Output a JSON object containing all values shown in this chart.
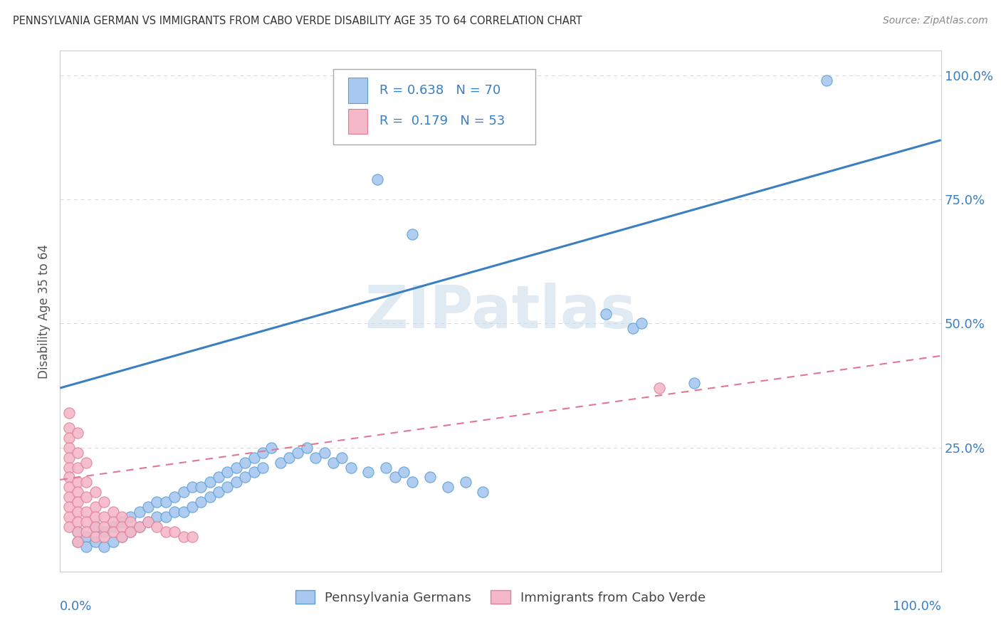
{
  "title": "PENNSYLVANIA GERMAN VS IMMIGRANTS FROM CABO VERDE DISABILITY AGE 35 TO 64 CORRELATION CHART",
  "source": "Source: ZipAtlas.com",
  "ylabel": "Disability Age 35 to 64",
  "r_blue": 0.638,
  "n_blue": 70,
  "r_pink": 0.179,
  "n_pink": 53,
  "blue_scatter": [
    [
      0.02,
      0.08
    ],
    [
      0.02,
      0.06
    ],
    [
      0.03,
      0.07
    ],
    [
      0.03,
      0.05
    ],
    [
      0.04,
      0.09
    ],
    [
      0.04,
      0.06
    ],
    [
      0.05,
      0.08
    ],
    [
      0.05,
      0.05
    ],
    [
      0.06,
      0.09
    ],
    [
      0.06,
      0.06
    ],
    [
      0.07,
      0.1
    ],
    [
      0.07,
      0.07
    ],
    [
      0.08,
      0.11
    ],
    [
      0.08,
      0.08
    ],
    [
      0.09,
      0.12
    ],
    [
      0.09,
      0.09
    ],
    [
      0.1,
      0.13
    ],
    [
      0.1,
      0.1
    ],
    [
      0.11,
      0.14
    ],
    [
      0.11,
      0.11
    ],
    [
      0.12,
      0.14
    ],
    [
      0.12,
      0.11
    ],
    [
      0.13,
      0.15
    ],
    [
      0.13,
      0.12
    ],
    [
      0.14,
      0.16
    ],
    [
      0.14,
      0.12
    ],
    [
      0.15,
      0.17
    ],
    [
      0.15,
      0.13
    ],
    [
      0.16,
      0.17
    ],
    [
      0.16,
      0.14
    ],
    [
      0.17,
      0.18
    ],
    [
      0.17,
      0.15
    ],
    [
      0.18,
      0.19
    ],
    [
      0.18,
      0.16
    ],
    [
      0.19,
      0.2
    ],
    [
      0.19,
      0.17
    ],
    [
      0.2,
      0.21
    ],
    [
      0.2,
      0.18
    ],
    [
      0.21,
      0.22
    ],
    [
      0.21,
      0.19
    ],
    [
      0.22,
      0.23
    ],
    [
      0.22,
      0.2
    ],
    [
      0.23,
      0.24
    ],
    [
      0.23,
      0.21
    ],
    [
      0.24,
      0.25
    ],
    [
      0.25,
      0.22
    ],
    [
      0.26,
      0.23
    ],
    [
      0.27,
      0.24
    ],
    [
      0.28,
      0.25
    ],
    [
      0.29,
      0.23
    ],
    [
      0.3,
      0.24
    ],
    [
      0.31,
      0.22
    ],
    [
      0.32,
      0.23
    ],
    [
      0.33,
      0.21
    ],
    [
      0.35,
      0.2
    ],
    [
      0.37,
      0.21
    ],
    [
      0.38,
      0.19
    ],
    [
      0.39,
      0.2
    ],
    [
      0.4,
      0.18
    ],
    [
      0.42,
      0.19
    ],
    [
      0.44,
      0.17
    ],
    [
      0.46,
      0.18
    ],
    [
      0.48,
      0.16
    ],
    [
      0.36,
      0.79
    ],
    [
      0.4,
      0.68
    ],
    [
      0.62,
      0.52
    ],
    [
      0.65,
      0.49
    ],
    [
      0.66,
      0.5
    ],
    [
      0.72,
      0.38
    ],
    [
      0.87,
      0.99
    ]
  ],
  "pink_scatter": [
    [
      0.01,
      0.32
    ],
    [
      0.01,
      0.29
    ],
    [
      0.01,
      0.27
    ],
    [
      0.01,
      0.25
    ],
    [
      0.01,
      0.23
    ],
    [
      0.01,
      0.21
    ],
    [
      0.01,
      0.19
    ],
    [
      0.01,
      0.17
    ],
    [
      0.01,
      0.15
    ],
    [
      0.01,
      0.13
    ],
    [
      0.01,
      0.11
    ],
    [
      0.01,
      0.09
    ],
    [
      0.02,
      0.28
    ],
    [
      0.02,
      0.24
    ],
    [
      0.02,
      0.21
    ],
    [
      0.02,
      0.18
    ],
    [
      0.02,
      0.16
    ],
    [
      0.02,
      0.14
    ],
    [
      0.02,
      0.12
    ],
    [
      0.02,
      0.1
    ],
    [
      0.02,
      0.08
    ],
    [
      0.02,
      0.06
    ],
    [
      0.03,
      0.22
    ],
    [
      0.03,
      0.18
    ],
    [
      0.03,
      0.15
    ],
    [
      0.03,
      0.12
    ],
    [
      0.03,
      0.1
    ],
    [
      0.03,
      0.08
    ],
    [
      0.04,
      0.16
    ],
    [
      0.04,
      0.13
    ],
    [
      0.04,
      0.11
    ],
    [
      0.04,
      0.09
    ],
    [
      0.04,
      0.07
    ],
    [
      0.05,
      0.14
    ],
    [
      0.05,
      0.11
    ],
    [
      0.05,
      0.09
    ],
    [
      0.05,
      0.07
    ],
    [
      0.06,
      0.12
    ],
    [
      0.06,
      0.1
    ],
    [
      0.06,
      0.08
    ],
    [
      0.07,
      0.11
    ],
    [
      0.07,
      0.09
    ],
    [
      0.07,
      0.07
    ],
    [
      0.08,
      0.1
    ],
    [
      0.08,
      0.08
    ],
    [
      0.09,
      0.09
    ],
    [
      0.1,
      0.1
    ],
    [
      0.11,
      0.09
    ],
    [
      0.12,
      0.08
    ],
    [
      0.13,
      0.08
    ],
    [
      0.14,
      0.07
    ],
    [
      0.15,
      0.07
    ],
    [
      0.68,
      0.37
    ]
  ],
  "blue_line": [
    0.0,
    0.37,
    1.0,
    0.87
  ],
  "pink_line": [
    0.0,
    0.185,
    1.0,
    0.435
  ],
  "blue_color": "#a8c8f0",
  "blue_edge_color": "#5a9fd4",
  "pink_color": "#f4b8c8",
  "pink_edge_color": "#e08098",
  "blue_line_color": "#3a7fc1",
  "pink_line_color": "#e07890",
  "legend_text_color": "#3a7fc1",
  "watermark_color": "#ccdcec",
  "background_color": "#ffffff",
  "grid_color": "#d8d8d8",
  "title_color": "#333333",
  "axis_label_color": "#3a7fc1",
  "ylabel_color": "#555555",
  "y_ticks": [
    0.0,
    0.25,
    0.5,
    0.75,
    1.0
  ],
  "y_tick_labels": [
    "",
    "25.0%",
    "50.0%",
    "75.0%",
    "100.0%"
  ],
  "xlim": [
    0.0,
    1.0
  ],
  "ylim": [
    0.0,
    1.05
  ]
}
